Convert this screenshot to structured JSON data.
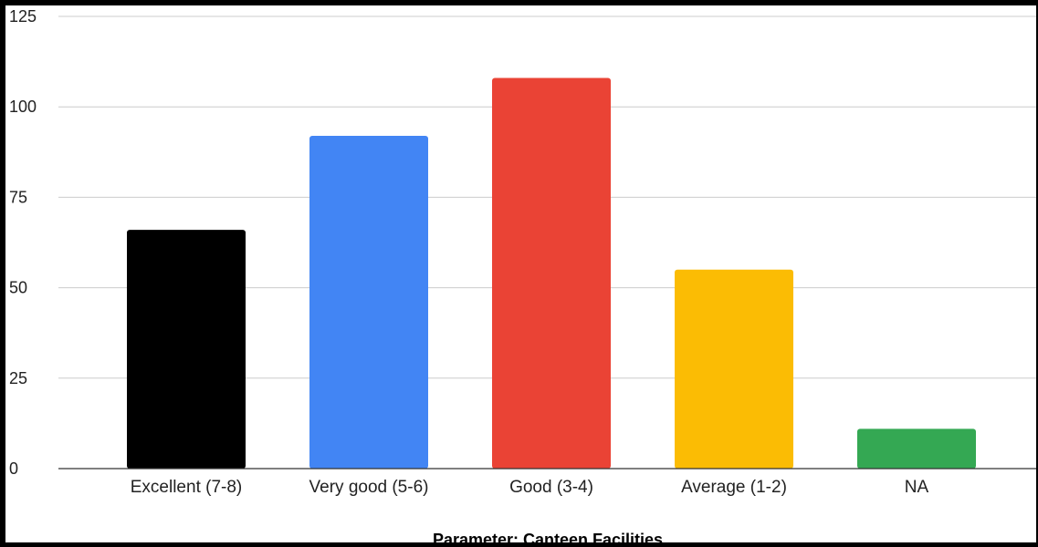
{
  "chart_data": {
    "type": "bar",
    "title": "",
    "xlabel": "Parameter: Canteen Facilities",
    "ylabel": "",
    "categories": [
      "Excellent (7-8)",
      "Very good (5-6)",
      "Good (3-4)",
      "Average (1-2)",
      "NA"
    ],
    "values": [
      66,
      92,
      108,
      55,
      11
    ],
    "colors": [
      "#000000",
      "#4285F4",
      "#EA4335",
      "#FBBC04",
      "#34A853"
    ],
    "ylim": [
      0,
      125
    ],
    "yticks": [
      0,
      25,
      50,
      75,
      100,
      125
    ],
    "grid": true,
    "legend": "none"
  }
}
